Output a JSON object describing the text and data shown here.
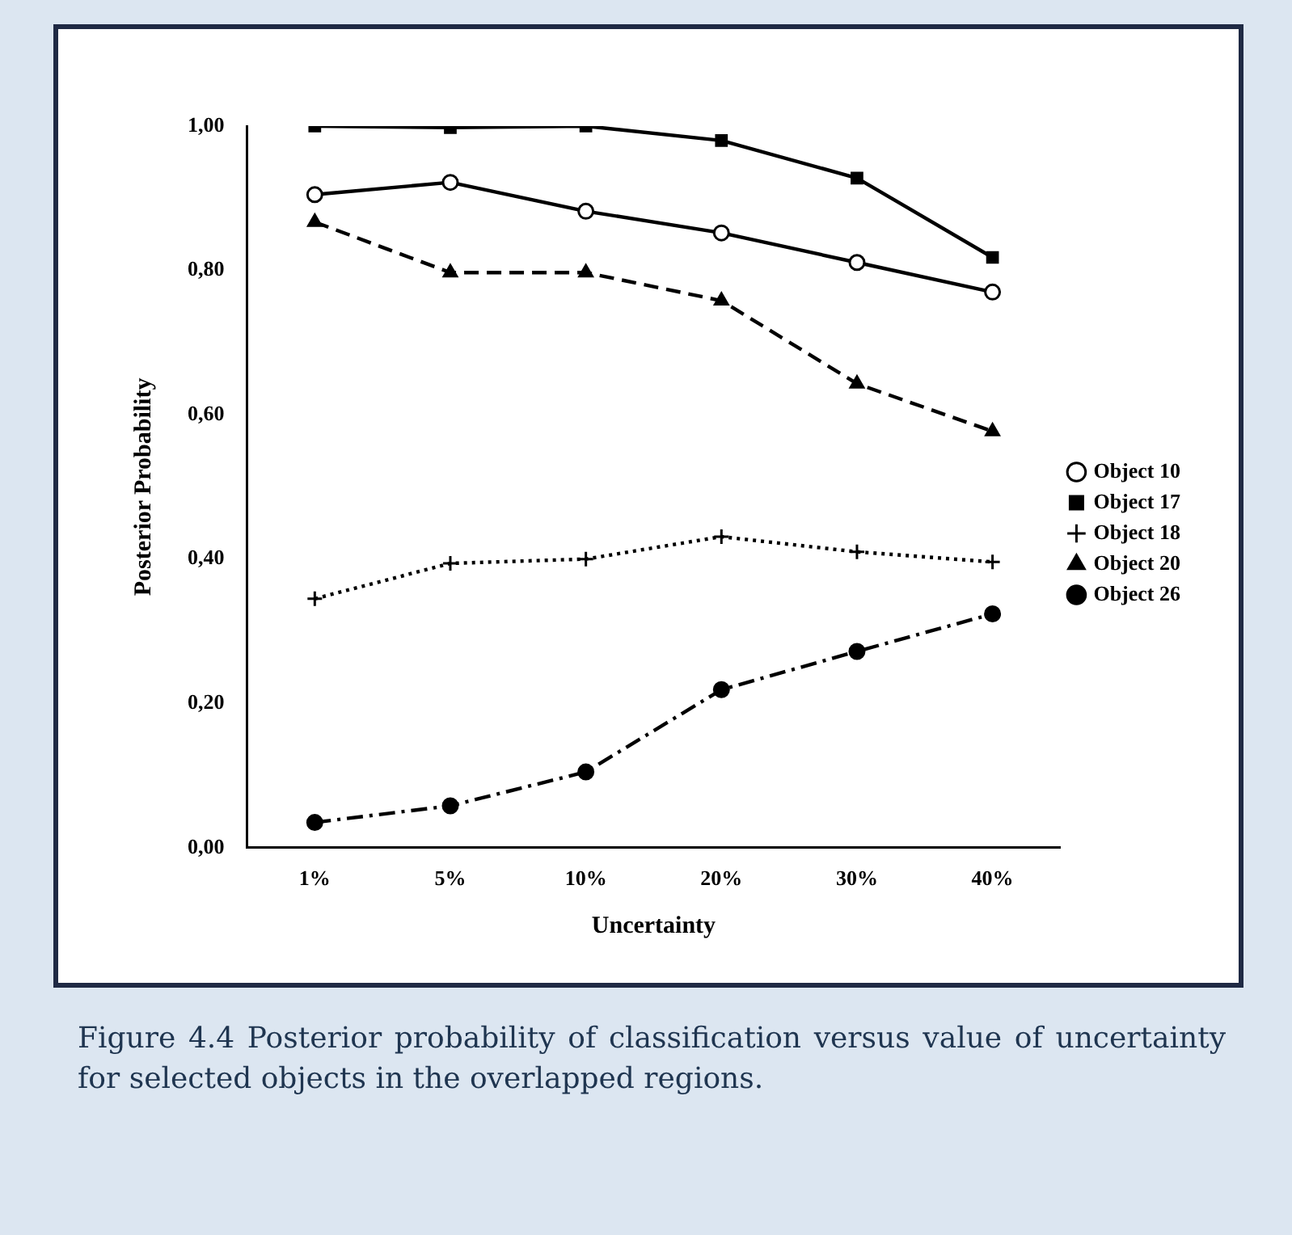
{
  "chart_data": {
    "type": "line",
    "xlabel": "Uncertainty",
    "ylabel": "Posterior Probability",
    "categories": [
      "1%",
      "5%",
      "10%",
      "20%",
      "30%",
      "40%"
    ],
    "series": [
      {
        "name": "Object 10",
        "color": "#000000",
        "marker": "circle-open",
        "line_style": "solid",
        "values": [
          0.905,
          0.922,
          0.882,
          0.852,
          0.811,
          0.77
        ]
      },
      {
        "name": "Object 17",
        "color": "#000000",
        "marker": "square",
        "line_style": "solid",
        "values": [
          1.0,
          0.998,
          1.0,
          0.98,
          0.928,
          0.818
        ]
      },
      {
        "name": "Object 18",
        "color": "#000000",
        "marker": "cross",
        "line_style": "dotted",
        "values": [
          0.345,
          0.394,
          0.4,
          0.431,
          0.41,
          0.396
        ]
      },
      {
        "name": "Object 20",
        "color": "#000000",
        "marker": "triangle",
        "line_style": "dashed",
        "values": [
          0.867,
          0.797,
          0.797,
          0.758,
          0.643,
          0.577
        ]
      },
      {
        "name": "Object 26",
        "color": "#000000",
        "marker": "circle",
        "line_style": "dashdot",
        "values": [
          0.035,
          0.058,
          0.105,
          0.219,
          0.272,
          0.324
        ]
      }
    ],
    "ylim": [
      0,
      1
    ],
    "yticks": [
      {
        "value": 0,
        "label": "0,00"
      },
      {
        "value": 0.2,
        "label": "0,20"
      },
      {
        "value": 0.4,
        "label": "0,40"
      },
      {
        "value": 0.6,
        "label": "0,60"
      },
      {
        "value": 0.8,
        "label": "0,80"
      },
      {
        "value": 1,
        "label": "1,00"
      }
    ],
    "grid": false,
    "legend": "right",
    "annotations": [
      "Figure 4.4 Posterior probability of classification versus value of uncertainty for selected objects in the overlapped regions."
    ]
  }
}
